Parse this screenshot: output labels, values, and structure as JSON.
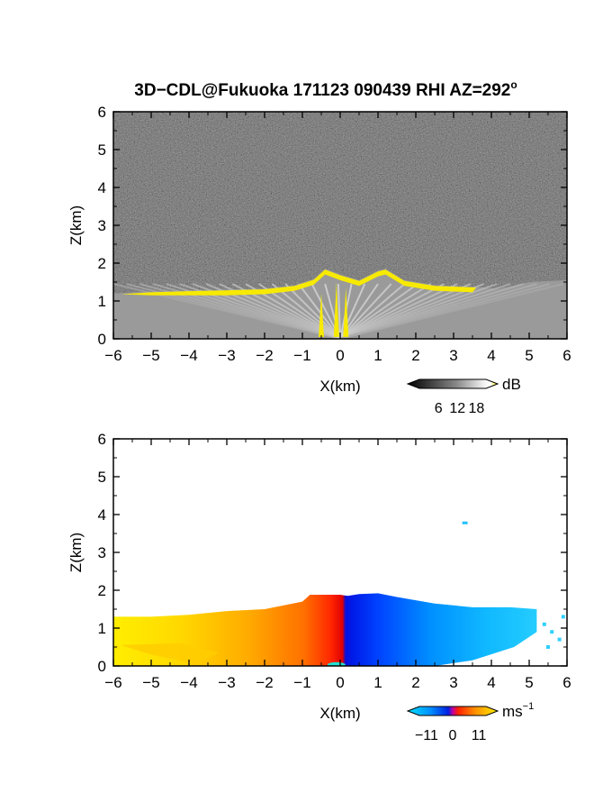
{
  "figure": {
    "title": "3D−CDL@Fukuoka 171123 090439 RHI AZ=292",
    "title_superscript": "o"
  },
  "chart_data": [
    {
      "type": "heatmap",
      "name": "reflectivity",
      "xlabel": "X(km)",
      "ylabel": "Z(km)",
      "xlim": [
        -6,
        6
      ],
      "ylim": [
        0,
        6
      ],
      "xticks": [
        "−6",
        "−5",
        "−4",
        "−3",
        "−2",
        "−1",
        "0",
        "1",
        "2",
        "3",
        "4",
        "5",
        "6"
      ],
      "yticks": [
        "0",
        "1",
        "2",
        "3",
        "4",
        "5",
        "6"
      ],
      "colorscale": "grayscale-to-yellow",
      "colorbar": {
        "unit": "dB",
        "ticks": [
          "6",
          "12",
          "18"
        ],
        "range": [
          0,
          21
        ]
      },
      "features": {
        "cloud_top_km": [
          [
            -6,
            1.2
          ],
          [
            -5,
            1.25
          ],
          [
            -4,
            1.28
          ],
          [
            -3,
            1.3
          ],
          [
            -2,
            1.33
          ],
          [
            -1.2,
            1.42
          ],
          [
            -0.7,
            1.58
          ],
          [
            -0.4,
            1.85
          ],
          [
            0,
            1.7
          ],
          [
            0.5,
            1.55
          ],
          [
            1.0,
            1.8
          ],
          [
            1.2,
            1.85
          ],
          [
            1.7,
            1.55
          ],
          [
            2.5,
            1.42
          ],
          [
            3.5,
            1.38
          ],
          [
            4.2,
            1.32
          ],
          [
            5,
            1.5
          ],
          [
            6,
            1.55
          ]
        ],
        "high_echo_extent_km": [
          -5.8,
          3.6
        ]
      }
    },
    {
      "type": "heatmap",
      "name": "doppler-velocity",
      "xlabel": "X(km)",
      "ylabel": "Z(km)",
      "xlim": [
        -6,
        6
      ],
      "ylim": [
        0,
        6
      ],
      "xticks": [
        "−6",
        "−5",
        "−4",
        "−3",
        "−2",
        "−1",
        "0",
        "1",
        "2",
        "3",
        "4",
        "5",
        "6"
      ],
      "yticks": [
        "0",
        "1",
        "2",
        "3",
        "4",
        "5",
        "6"
      ],
      "colorscale": "cyan-blue-red-yellow",
      "colorbar": {
        "unit": "ms",
        "unit_exp": "−1",
        "ticks": [
          "−11",
          "0",
          "11"
        ],
        "range": [
          -14,
          14
        ]
      },
      "features": {
        "echo_top_km": [
          [
            -6,
            1.3
          ],
          [
            -5,
            1.3
          ],
          [
            -4,
            1.35
          ],
          [
            -3,
            1.45
          ],
          [
            -2,
            1.5
          ],
          [
            -1,
            1.7
          ],
          [
            -0.8,
            1.88
          ],
          [
            0,
            1.88
          ],
          [
            0.2,
            1.85
          ],
          [
            0.5,
            1.9
          ],
          [
            1.0,
            1.92
          ],
          [
            1.5,
            1.82
          ],
          [
            2.5,
            1.65
          ],
          [
            3.5,
            1.55
          ],
          [
            4.5,
            1.55
          ],
          [
            5.2,
            1.5
          ]
        ],
        "velocity_at_x": [
          [
            -6,
            9
          ],
          [
            -3,
            7
          ],
          [
            -1,
            4
          ],
          [
            -0.2,
            1
          ],
          [
            0.2,
            -6
          ],
          [
            1.5,
            -4
          ],
          [
            3,
            -2.5
          ],
          [
            5,
            -1.5
          ]
        ],
        "speckle_km": [
          3.3,
          3.78
        ]
      }
    }
  ]
}
